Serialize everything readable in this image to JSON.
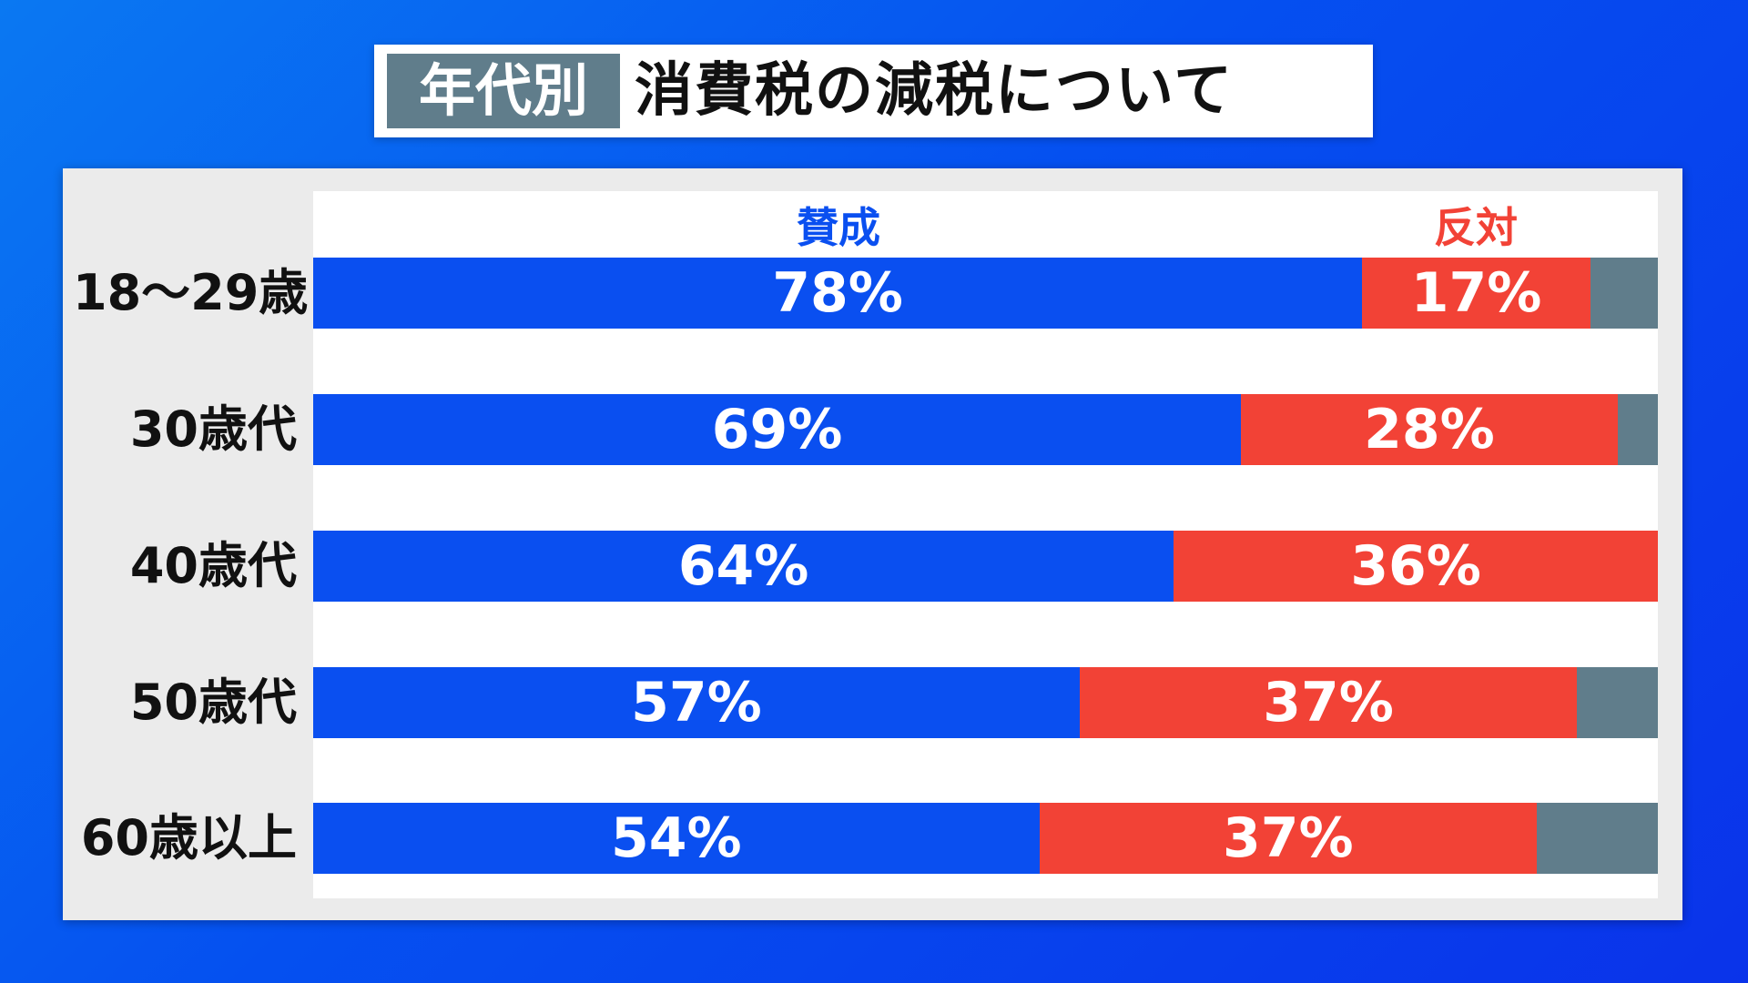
{
  "title": {
    "tag": "年代別",
    "main": "消費税の減税について"
  },
  "legend": {
    "for": "賛成",
    "against": "反対"
  },
  "colors": {
    "for": "#0a4ff0",
    "against": "#f24236",
    "other": "#607d8b"
  },
  "chart_data": {
    "type": "bar",
    "orientation": "horizontal",
    "stacked": true,
    "categories": [
      "18〜29歳",
      "30歳代",
      "40歳代",
      "50歳代",
      "60歳以上"
    ],
    "series": [
      {
        "name": "賛成",
        "values": [
          78,
          69,
          64,
          57,
          54
        ]
      },
      {
        "name": "反対",
        "values": [
          17,
          28,
          36,
          37,
          37
        ]
      }
    ],
    "unit": "%",
    "xlim": [
      0,
      100
    ],
    "grid": false
  }
}
